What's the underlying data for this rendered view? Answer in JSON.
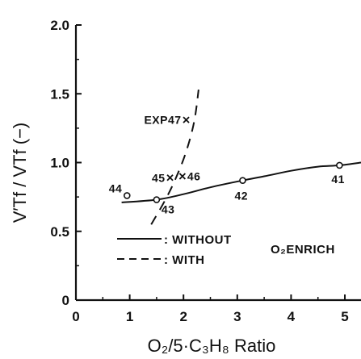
{
  "chart_data": {
    "type": "line",
    "xlabel": "O₂/5·C₃H₈ Ratio",
    "ylabel": "V′Tf / VTf (−)",
    "xlim": [
      0,
      5.3
    ],
    "ylim": [
      0,
      2.0
    ],
    "x_ticks": [
      "0",
      "1",
      "2",
      "3",
      "4",
      "5"
    ],
    "y_ticks": [
      "0",
      "0.5",
      "1.0",
      "1.5",
      "2.0"
    ],
    "grid": false,
    "series": [
      {
        "name": ": WITHOUT",
        "style": "solid",
        "x": [
          0.85,
          1.5,
          2.0,
          2.5,
          3.1,
          3.5,
          4.0,
          4.5,
          4.9,
          5.3
        ],
        "y": [
          0.71,
          0.73,
          0.77,
          0.82,
          0.87,
          0.9,
          0.94,
          0.97,
          0.98,
          1.0
        ]
      },
      {
        "name": ": WITH",
        "style": "dashed",
        "x": [
          1.4,
          1.65,
          1.85,
          2.05,
          2.2,
          2.28
        ],
        "y": [
          0.55,
          0.72,
          0.88,
          1.08,
          1.3,
          1.53
        ]
      }
    ],
    "points": [
      {
        "label": "41",
        "marker": "o",
        "x": 4.9,
        "y": 0.98
      },
      {
        "label": "42",
        "marker": "o",
        "x": 3.1,
        "y": 0.87
      },
      {
        "label": "43",
        "marker": "o",
        "x": 1.5,
        "y": 0.73
      },
      {
        "label": "44",
        "marker": "o",
        "x": 0.95,
        "y": 0.76
      },
      {
        "label": "45",
        "marker": "x",
        "x": 1.75,
        "y": 0.89
      },
      {
        "label": "46",
        "marker": "x",
        "x": 1.98,
        "y": 0.9
      },
      {
        "label": "EXP47",
        "marker": "x",
        "x": 2.05,
        "y": 1.31
      }
    ],
    "annotation": "O₂ENRICH",
    "legend_position": "bottom-left"
  }
}
